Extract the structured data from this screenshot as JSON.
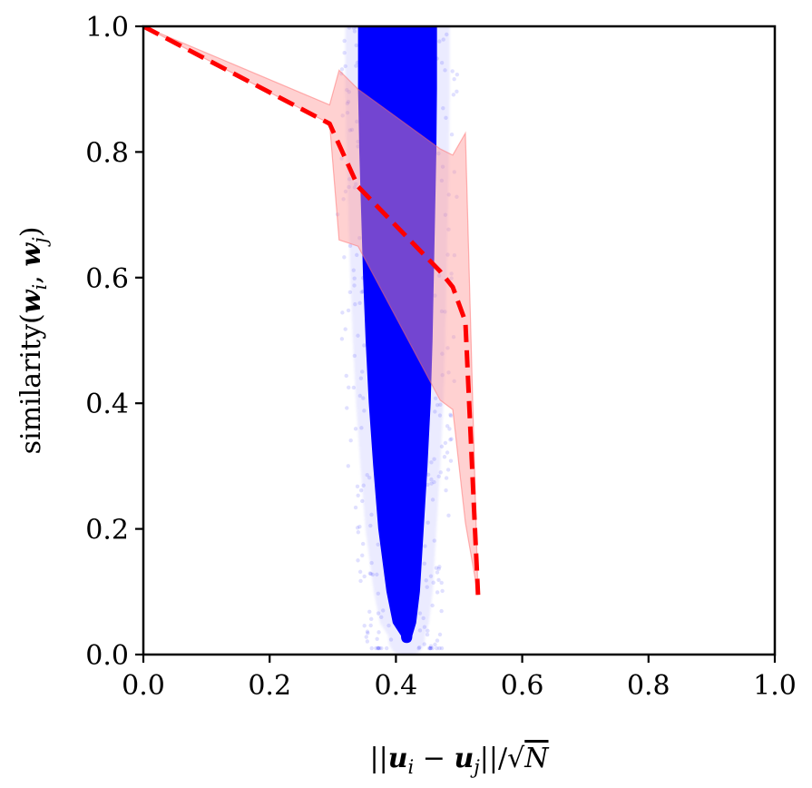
{
  "chart_data": {
    "type": "scatter",
    "title": "",
    "xlabel": "||u_i − u_j||/√N",
    "ylabel": "similarity(w_i, w_j)",
    "xlim": [
      0.0,
      1.0
    ],
    "ylim": [
      0.0,
      1.0
    ],
    "xticks": [
      "0.0",
      "0.2",
      "0.4",
      "0.6",
      "0.8",
      "1.0"
    ],
    "yticks": [
      "0.0",
      "0.2",
      "0.4",
      "0.6",
      "0.8",
      "1.0"
    ],
    "grid": false,
    "scatter_cloud": {
      "color": "#0000ff",
      "description_of_shape_rows": [
        {
          "y": 1.0,
          "x_min": 0.34,
          "x_max": 0.465
        },
        {
          "y": 0.9,
          "x_min": 0.34,
          "x_max": 0.465
        },
        {
          "y": 0.8,
          "x_min": 0.342,
          "x_max": 0.464
        },
        {
          "y": 0.7,
          "x_min": 0.345,
          "x_max": 0.462
        },
        {
          "y": 0.6,
          "x_min": 0.348,
          "x_max": 0.46
        },
        {
          "y": 0.5,
          "x_min": 0.352,
          "x_max": 0.458
        },
        {
          "y": 0.4,
          "x_min": 0.357,
          "x_max": 0.455
        },
        {
          "y": 0.3,
          "x_min": 0.364,
          "x_max": 0.45
        },
        {
          "y": 0.2,
          "x_min": 0.372,
          "x_max": 0.444
        },
        {
          "y": 0.1,
          "x_min": 0.385,
          "x_max": 0.438
        },
        {
          "y": 0.05,
          "x_min": 0.395,
          "x_max": 0.432
        },
        {
          "y": 0.03,
          "x_min": 0.408,
          "x_max": 0.426
        }
      ]
    },
    "mean_line": {
      "color": "#ff0000",
      "style": "dashed",
      "x": [
        0.0,
        0.295,
        0.34,
        0.47,
        0.49,
        0.51,
        0.53
      ],
      "y": [
        1.0,
        0.845,
        0.745,
        0.61,
        0.585,
        0.53,
        0.095
      ]
    },
    "band": {
      "color": "#ff9999",
      "upper": {
        "x": [
          0.0,
          0.295,
          0.31,
          0.34,
          0.47,
          0.49,
          0.51
        ],
        "y": [
          1.0,
          0.875,
          0.93,
          0.9,
          0.805,
          0.795,
          0.83
        ]
      },
      "lower": {
        "x": [
          0.0,
          0.295,
          0.31,
          0.34,
          0.47,
          0.49,
          0.51,
          0.53
        ],
        "y": [
          1.0,
          0.845,
          0.66,
          0.65,
          0.405,
          0.39,
          0.21,
          0.095
        ]
      }
    }
  }
}
